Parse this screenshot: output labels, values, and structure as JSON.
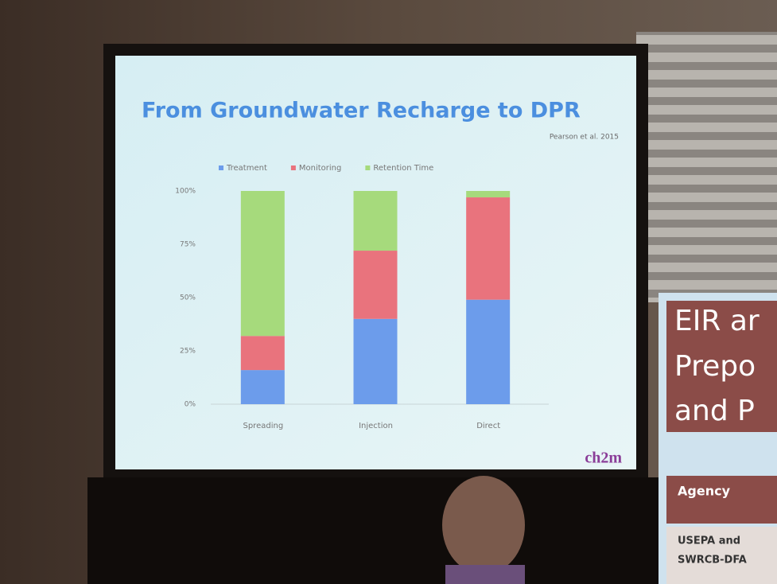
{
  "chart_data": {
    "type": "stacked-bar",
    "title": "From Groundwater Recharge to DPR",
    "annotations": [
      "Pearson et al. 2015",
      "ch2m"
    ],
    "categories": [
      "Spreading",
      "Injection",
      "Direct"
    ],
    "series": [
      {
        "name": "Treatment",
        "color": "#6c9ceb",
        "values": [
          16,
          40,
          49
        ]
      },
      {
        "name": "Monitoring",
        "color": "#e9737d",
        "values": [
          16,
          32,
          48
        ]
      },
      {
        "name": "Retention Time",
        "color": "#a6da7c",
        "values": [
          68,
          28,
          3
        ]
      }
    ],
    "ylim": [
      0,
      100
    ],
    "yticks": [
      {
        "value": 0,
        "label": "0%"
      },
      {
        "value": 25,
        "label": "25%"
      },
      {
        "value": 50,
        "label": "50%"
      },
      {
        "value": 75,
        "label": "75%"
      },
      {
        "value": 100,
        "label": "100%"
      }
    ],
    "grid": false,
    "legend": "top"
  },
  "poster": {
    "lines": [
      "EIR ar",
      "Prepo",
      "and P"
    ],
    "table_header": "Agency",
    "table_cell": [
      "USEPA and",
      "SWRCB-DFA"
    ]
  }
}
